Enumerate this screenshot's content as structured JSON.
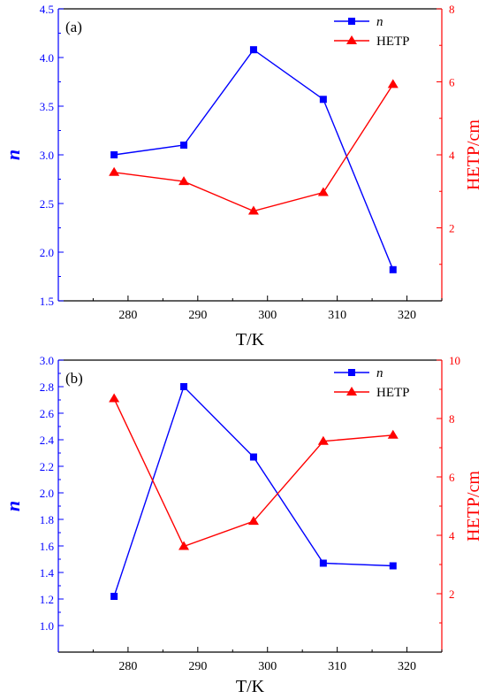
{
  "chart_data": [
    {
      "panel": "(a)",
      "type": "line",
      "x": [
        278,
        288,
        298,
        308,
        318
      ],
      "xlabel": "T/K",
      "xlim": [
        270,
        325
      ],
      "xticks": [
        280,
        290,
        300,
        310,
        320
      ],
      "left_axis": {
        "label": "n",
        "color": "#0000ff",
        "ylim": [
          1.5,
          4.5
        ],
        "ticks": [
          1.5,
          2.0,
          2.5,
          3.0,
          3.5,
          4.0,
          4.5
        ],
        "tick_labels": [
          "1.5",
          "2.0",
          "2.5",
          "3.0",
          "3.5",
          "4.0",
          "4.5"
        ]
      },
      "right_axis": {
        "label": "HETP/cm",
        "color": "#ff0000",
        "ylim": [
          0,
          8
        ],
        "ticks": [
          2,
          4,
          6,
          8
        ],
        "tick_labels": [
          "2",
          "4",
          "6",
          "8"
        ]
      },
      "series": [
        {
          "name": "n",
          "axis": "left",
          "marker": "square",
          "color": "#0000ff",
          "values": [
            3.0,
            3.1,
            4.08,
            3.57,
            1.82
          ]
        },
        {
          "name": "HETP",
          "axis": "right",
          "marker": "triangle",
          "color": "#ff0000",
          "values": [
            3.52,
            3.27,
            2.46,
            2.97,
            5.93
          ]
        }
      ],
      "legend": "top-right"
    },
    {
      "panel": "(b)",
      "type": "line",
      "x": [
        278,
        288,
        298,
        308,
        318
      ],
      "xlabel": "T/K",
      "xlim": [
        270,
        325
      ],
      "xticks": [
        280,
        290,
        300,
        310,
        320
      ],
      "left_axis": {
        "label": "n",
        "color": "#0000ff",
        "ylim": [
          0.8,
          3.0
        ],
        "ticks": [
          1.0,
          1.2,
          1.4,
          1.6,
          1.8,
          2.0,
          2.2,
          2.4,
          2.6,
          2.8,
          3.0
        ],
        "tick_labels": [
          "1.0",
          "1.2",
          "1.4",
          "1.6",
          "1.8",
          "2.0",
          "2.2",
          "2.4",
          "2.6",
          "2.8",
          "3.0"
        ]
      },
      "right_axis": {
        "label": "HETP/cm",
        "color": "#ff0000",
        "ylim": [
          0,
          10
        ],
        "ticks": [
          2,
          4,
          6,
          8,
          10
        ],
        "tick_labels": [
          "2",
          "4",
          "6",
          "8",
          "10"
        ]
      },
      "series": [
        {
          "name": "n",
          "axis": "left",
          "marker": "square",
          "color": "#0000ff",
          "values": [
            1.22,
            2.8,
            2.27,
            1.47,
            1.45
          ]
        },
        {
          "name": "HETP",
          "axis": "right",
          "marker": "triangle",
          "color": "#ff0000",
          "values": [
            8.68,
            3.62,
            4.48,
            7.22,
            7.43
          ]
        }
      ],
      "legend": "top-right"
    }
  ]
}
